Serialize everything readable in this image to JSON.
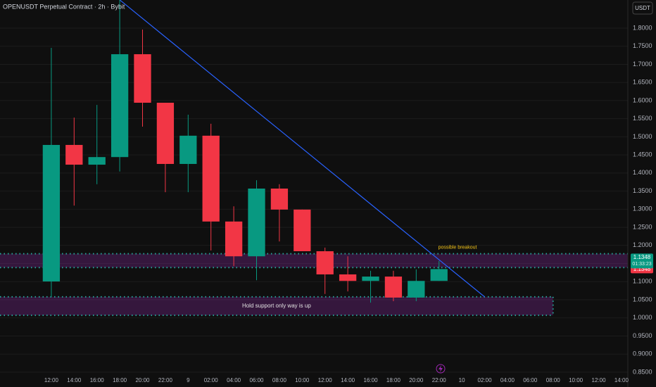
{
  "chart_data": {
    "type": "candlestick",
    "title": "OPENUSDT Perpetual Contract · 2h · Bybit",
    "currency_button": "USDT",
    "categories": [
      "12:00",
      "14:00",
      "16:00",
      "18:00",
      "20:00",
      "22:00",
      "9",
      "02:00",
      "04:00",
      "06:00",
      "08:00",
      "10:00",
      "12:00",
      "14:00",
      "16:00",
      "18:00",
      "20:00",
      "22:00",
      "10",
      "02:00",
      "04:00",
      "06:00",
      "08:00",
      "10:00",
      "12:00",
      "14:00"
    ],
    "open": [
      1.1005,
      1.4775,
      1.423,
      1.444,
      1.728,
      1.594,
      1.425,
      1.503,
      1.266,
      1.17,
      1.357,
      1.299,
      1.184,
      1.12,
      1.102,
      1.114,
      1.056,
      1.102,
      null,
      null,
      null,
      null,
      null,
      null,
      null,
      null
    ],
    "high": [
      1.7456,
      1.553,
      1.588,
      1.878,
      1.796,
      1.594,
      1.561,
      1.536,
      1.308,
      1.38,
      1.369,
      1.299,
      1.194,
      1.17,
      1.13,
      1.13,
      1.134,
      1.157,
      null,
      null,
      null,
      null,
      null,
      null,
      null,
      null
    ],
    "low": [
      1.0578,
      1.31,
      1.369,
      1.404,
      1.528,
      1.347,
      1.347,
      1.186,
      1.143,
      1.104,
      1.211,
      1.184,
      1.066,
      1.073,
      1.042,
      1.046,
      1.046,
      1.102,
      null,
      null,
      null,
      null,
      null,
      null,
      null,
      null
    ],
    "close": [
      1.4775,
      1.423,
      1.444,
      1.728,
      1.594,
      1.425,
      1.503,
      1.266,
      1.17,
      1.357,
      1.299,
      1.184,
      1.12,
      1.102,
      1.114,
      1.056,
      1.102,
      1.1348,
      null,
      null,
      null,
      null,
      null,
      null,
      null,
      null
    ],
    "up_color": "#089981",
    "down_color": "#f23645",
    "xlim": [
      -2.25,
      25.28
    ],
    "ylim": [
      0.8285,
      1.8777
    ],
    "yticks": [
      {
        "value": 0.85,
        "label": "0.8500"
      },
      {
        "value": 0.9,
        "label": "0.9000"
      },
      {
        "value": 0.95,
        "label": "0.9500"
      },
      {
        "value": 1.0,
        "label": "1.0000"
      },
      {
        "value": 1.05,
        "label": "1.0500"
      },
      {
        "value": 1.1,
        "label": "1.1000"
      },
      {
        "value": 1.15,
        "label": "1.1500"
      },
      {
        "value": 1.2,
        "label": "1.2000"
      },
      {
        "value": 1.25,
        "label": "1.2500"
      },
      {
        "value": 1.3,
        "label": "1.3000"
      },
      {
        "value": 1.35,
        "label": "1.3500"
      },
      {
        "value": 1.4,
        "label": "1.4000"
      },
      {
        "value": 1.45,
        "label": "1.4500"
      },
      {
        "value": 1.5,
        "label": "1.5000"
      },
      {
        "value": 1.55,
        "label": "1.5500"
      },
      {
        "value": 1.6,
        "label": "1.6000"
      },
      {
        "value": 1.65,
        "label": "1.6500"
      },
      {
        "value": 1.7,
        "label": "1.7000"
      },
      {
        "value": 1.75,
        "label": "1.7500"
      },
      {
        "value": 1.8,
        "label": "1.8000"
      }
    ],
    "grid": true,
    "last_price": {
      "value": 1.1348,
      "label": "1.1348"
    },
    "countdown": "01:33:23",
    "mark_price": {
      "value": 1.1348,
      "label": "1.1348"
    },
    "trendline": {
      "x": [
        3,
        19
      ],
      "y": [
        1.878,
        1.058
      ],
      "color": "#2962ff"
    },
    "zones": [
      {
        "low": 1.139,
        "high": 1.177,
        "label": "possible breakout"
      },
      {
        "low": 1.007,
        "high": 1.058,
        "end": 22,
        "label": "Hold support only way is up"
      }
    ]
  }
}
